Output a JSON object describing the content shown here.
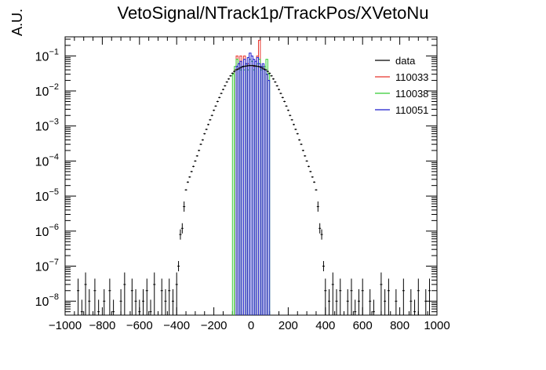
{
  "chart_data": {
    "type": "histogram",
    "title": "VetoSignal/NTrack1p/TrackPos/XVetoNu",
    "xlabel": "",
    "ylabel": "A.U.",
    "xlim": [
      -1000,
      1000
    ],
    "yscale": "log",
    "ylim": [
      4e-09,
      0.35
    ],
    "xticks": [
      -1000,
      -800,
      -600,
      -400,
      -200,
      0,
      200,
      400,
      600,
      800,
      1000
    ],
    "yticks": [
      {
        "value": 1e-08,
        "label_base": "10",
        "label_exp": "−8"
      },
      {
        "value": 1e-07,
        "label_base": "10",
        "label_exp": "−7"
      },
      {
        "value": 1e-06,
        "label_base": "10",
        "label_exp": "−6"
      },
      {
        "value": 1e-05,
        "label_base": "10",
        "label_exp": "−5"
      },
      {
        "value": 0.0001,
        "label_base": "10",
        "label_exp": "−4"
      },
      {
        "value": 0.001,
        "label_base": "10",
        "label_exp": "−3"
      },
      {
        "value": 0.01,
        "label_base": "10",
        "label_exp": "−2"
      },
      {
        "value": 0.1,
        "label_base": "10",
        "label_exp": "−1"
      }
    ],
    "legend": "top-right",
    "series": [
      {
        "name": "data",
        "color": "#000000",
        "style": "points",
        "points": [
          [
            -930,
            2e-08
          ],
          [
            -910,
            5e-09
          ],
          [
            -890,
            3e-08
          ],
          [
            -870,
            1e-08
          ],
          [
            -840,
            2e-08
          ],
          [
            -820,
            5e-09
          ],
          [
            -790,
            1e-08
          ],
          [
            -760,
            2e-08
          ],
          [
            -740,
            5e-09
          ],
          [
            -700,
            1e-08
          ],
          [
            -680,
            3e-08
          ],
          [
            -640,
            2e-08
          ],
          [
            -620,
            1e-08
          ],
          [
            -600,
            5e-09
          ],
          [
            -580,
            1e-08
          ],
          [
            -560,
            2e-08
          ],
          [
            -540,
            5e-09
          ],
          [
            -520,
            3e-08
          ],
          [
            -480,
            2e-08
          ],
          [
            -460,
            1e-08
          ],
          [
            -440,
            2e-08
          ],
          [
            -420,
            1e-08
          ],
          [
            -400,
            3e-08
          ],
          [
            -390,
            1e-07
          ],
          [
            -380,
            8e-07
          ],
          [
            -370,
            1.2e-06
          ],
          [
            -360,
            5e-06
          ],
          [
            -350,
            1.5e-05
          ],
          [
            -340,
            2.5e-05
          ],
          [
            -330,
            3.5e-05
          ],
          [
            -320,
            5e-05
          ],
          [
            -310,
            7e-05
          ],
          [
            -300,
            0.0001
          ],
          [
            -290,
            0.00014
          ],
          [
            -280,
            0.0002
          ],
          [
            -270,
            0.0003
          ],
          [
            -260,
            0.0004
          ],
          [
            -250,
            0.0006
          ],
          [
            -240,
            0.0008
          ],
          [
            -230,
            0.0011
          ],
          [
            -220,
            0.0015
          ],
          [
            -210,
            0.002
          ],
          [
            -200,
            0.0028
          ],
          [
            -190,
            0.0037
          ],
          [
            -180,
            0.005
          ],
          [
            -170,
            0.0065
          ],
          [
            -160,
            0.0085
          ],
          [
            -150,
            0.011
          ],
          [
            -140,
            0.014
          ],
          [
            -130,
            0.018
          ],
          [
            -120,
            0.022
          ],
          [
            -110,
            0.027
          ],
          [
            -100,
            0.032
          ],
          [
            -90,
            0.036
          ],
          [
            -80,
            0.04
          ],
          [
            -70,
            0.042
          ],
          [
            -60,
            0.045
          ],
          [
            -50,
            0.048
          ],
          [
            -40,
            0.05
          ],
          [
            -30,
            0.051
          ],
          [
            -20,
            0.052
          ],
          [
            -10,
            0.053
          ],
          [
            0,
            0.053
          ],
          [
            10,
            0.053
          ],
          [
            20,
            0.052
          ],
          [
            30,
            0.051
          ],
          [
            40,
            0.05
          ],
          [
            50,
            0.048
          ],
          [
            60,
            0.045
          ],
          [
            70,
            0.042
          ],
          [
            80,
            0.04
          ],
          [
            90,
            0.036
          ],
          [
            100,
            0.032
          ],
          [
            110,
            0.027
          ],
          [
            120,
            0.022
          ],
          [
            130,
            0.018
          ],
          [
            140,
            0.014
          ],
          [
            150,
            0.011
          ],
          [
            160,
            0.0085
          ],
          [
            170,
            0.0065
          ],
          [
            180,
            0.005
          ],
          [
            190,
            0.0037
          ],
          [
            200,
            0.0028
          ],
          [
            210,
            0.002
          ],
          [
            220,
            0.0015
          ],
          [
            230,
            0.0011
          ],
          [
            240,
            0.0008
          ],
          [
            250,
            0.0006
          ],
          [
            260,
            0.0004
          ],
          [
            270,
            0.0003
          ],
          [
            280,
            0.0002
          ],
          [
            290,
            0.00014
          ],
          [
            300,
            0.0001
          ],
          [
            310,
            7e-05
          ],
          [
            320,
            5e-05
          ],
          [
            330,
            3.5e-05
          ],
          [
            340,
            2.5e-05
          ],
          [
            350,
            1.5e-05
          ],
          [
            360,
            5e-06
          ],
          [
            370,
            1.2e-06
          ],
          [
            380,
            8e-07
          ],
          [
            390,
            1e-07
          ],
          [
            400,
            2e-08
          ],
          [
            420,
            1e-08
          ],
          [
            440,
            3e-08
          ],
          [
            460,
            1e-08
          ],
          [
            480,
            2e-08
          ],
          [
            520,
            1e-08
          ],
          [
            540,
            2e-08
          ],
          [
            560,
            5e-09
          ],
          [
            580,
            1e-08
          ],
          [
            600,
            2e-08
          ],
          [
            640,
            1e-08
          ],
          [
            660,
            5e-09
          ],
          [
            700,
            3e-08
          ],
          [
            720,
            1e-08
          ],
          [
            740,
            2e-08
          ],
          [
            780,
            1e-08
          ],
          [
            820,
            2e-08
          ],
          [
            860,
            1e-08
          ],
          [
            880,
            5e-09
          ],
          [
            900,
            2e-08
          ],
          [
            940,
            1e-08
          ],
          [
            960,
            2e-08
          ]
        ]
      },
      {
        "name": "110033",
        "color": "#e8332a",
        "style": "hist",
        "bins": [
          [
            -90,
            -80,
            0.04
          ],
          [
            -80,
            -70,
            0.1
          ],
          [
            -60,
            -50,
            0.1
          ],
          [
            -40,
            -30,
            0.1
          ],
          [
            -20,
            -10,
            0.06
          ],
          [
            10,
            20,
            0.05
          ],
          [
            30,
            40,
            0.1
          ],
          [
            40,
            50,
            0.28
          ],
          [
            60,
            70,
            0.05
          ],
          [
            80,
            90,
            0.03
          ]
        ]
      },
      {
        "name": "110038",
        "color": "#33cc33",
        "style": "hist",
        "bins": [
          [
            -100,
            -90,
            0.03
          ],
          [
            -90,
            -80,
            0.05
          ],
          [
            -80,
            -70,
            0.08
          ],
          [
            -70,
            -60,
            0.06
          ],
          [
            -60,
            -50,
            0.04
          ],
          [
            -50,
            -40,
            0.05
          ],
          [
            -40,
            -30,
            0.04
          ],
          [
            -30,
            -20,
            0.06
          ],
          [
            -20,
            -10,
            0.04
          ],
          [
            -10,
            0,
            0.08
          ],
          [
            0,
            10,
            0.07
          ],
          [
            10,
            20,
            0.04
          ],
          [
            20,
            30,
            0.05
          ],
          [
            30,
            40,
            0.06
          ],
          [
            40,
            50,
            0.08
          ],
          [
            50,
            60,
            0.04
          ],
          [
            60,
            70,
            0.05
          ],
          [
            70,
            80,
            0.05
          ],
          [
            80,
            90,
            0.08
          ],
          [
            90,
            100,
            0.03
          ]
        ]
      },
      {
        "name": "110051",
        "color": "#1a1acc",
        "style": "hist",
        "bins": [
          [
            -80,
            -70,
            0.05
          ],
          [
            -70,
            -60,
            0.06
          ],
          [
            -60,
            -50,
            0.07
          ],
          [
            -50,
            -40,
            0.05
          ],
          [
            -40,
            -30,
            0.08
          ],
          [
            -30,
            -20,
            0.06
          ],
          [
            -20,
            -10,
            0.09
          ],
          [
            -10,
            0,
            0.12
          ],
          [
            0,
            10,
            0.1
          ],
          [
            10,
            20,
            0.08
          ],
          [
            20,
            30,
            0.07
          ],
          [
            30,
            40,
            0.09
          ],
          [
            40,
            50,
            0.06
          ],
          [
            50,
            60,
            0.05
          ],
          [
            60,
            70,
            0.06
          ],
          [
            70,
            80,
            0.04
          ],
          [
            80,
            90,
            0.03
          ],
          [
            90,
            100,
            0.02
          ]
        ]
      }
    ]
  }
}
